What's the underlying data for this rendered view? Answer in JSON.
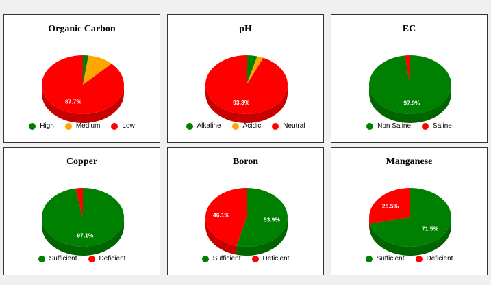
{
  "chart_data": [
    {
      "type": "pie",
      "title": "Organic Carbon",
      "slices": [
        {
          "name": "High",
          "value": 2.2,
          "color": "#008000",
          "label": ""
        },
        {
          "name": "Medium",
          "value": 10.1,
          "color": "#ffa500",
          "label": ""
        },
        {
          "name": "Low",
          "value": 87.7,
          "color": "#ff0000",
          "label": "87.7%"
        }
      ],
      "legend": "bottom"
    },
    {
      "type": "pie",
      "title": "pH",
      "slices": [
        {
          "name": "Alkaline",
          "value": 4.2,
          "color": "#008000",
          "label": ""
        },
        {
          "name": "Acidic",
          "value": 2.5,
          "color": "#ffa500",
          "label": ""
        },
        {
          "name": "Neutral",
          "value": 93.3,
          "color": "#ff0000",
          "label": "93.3%"
        }
      ],
      "legend": "bottom"
    },
    {
      "type": "pie",
      "title": "EC",
      "slices": [
        {
          "name": "Non Saline",
          "value": 97.9,
          "color": "#008000",
          "label": "97.9%"
        },
        {
          "name": "Saline",
          "value": 2.1,
          "color": "#ff0000",
          "label": ""
        }
      ],
      "legend": "bottom"
    },
    {
      "type": "pie",
      "title": "Copper",
      "slices": [
        {
          "name": "Sufficient",
          "value": 97.1,
          "color": "#008000",
          "label": "97.1%"
        },
        {
          "name": "Deficient",
          "value": 2.9,
          "color": "#ff0000",
          "label": ""
        }
      ],
      "legend": "bottom"
    },
    {
      "type": "pie",
      "title": "Boron",
      "slices": [
        {
          "name": "Sufficient",
          "value": 53.9,
          "color": "#008000",
          "label": "53.9%"
        },
        {
          "name": "Deficient",
          "value": 46.1,
          "color": "#ff0000",
          "label": "46.1%"
        }
      ],
      "legend": "bottom"
    },
    {
      "type": "pie",
      "title": "Manganese",
      "slices": [
        {
          "name": "Sufficient",
          "value": 71.5,
          "color": "#008000",
          "label": "71.5%"
        },
        {
          "name": "Deficient",
          "value": 28.5,
          "color": "#ff0000",
          "label": "28.5%"
        }
      ],
      "legend": "bottom"
    }
  ]
}
